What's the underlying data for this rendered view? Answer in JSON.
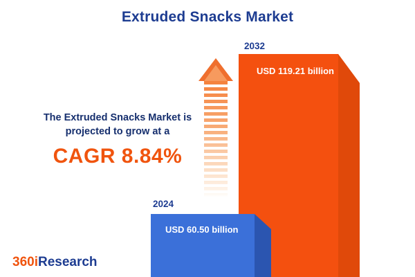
{
  "title": "Extruded Snacks Market",
  "chart_data": {
    "type": "bar",
    "categories": [
      "2024",
      "2032"
    ],
    "values": [
      60.5,
      119.21
    ],
    "value_labels": [
      "USD 60.50 billion",
      "USD 119.21 billion"
    ],
    "unit": "USD billion",
    "title": "Extruded Snacks Market",
    "xlabel": "",
    "ylabel": "",
    "legend": "none",
    "grid": false
  },
  "annotation": {
    "line1": "The Extruded Snacks Market is",
    "line2": "projected to grow at a",
    "cagr": "CAGR 8.84%"
  },
  "logo": {
    "part1": "360i",
    "part2": "Research"
  },
  "colors": {
    "navy": "#1d3c91",
    "annotation_navy": "#162f6e",
    "bar_2032_front": "#f4500f",
    "bar_2032_side": "#e0490a",
    "bar_2024_front": "#3b70d9",
    "bar_2024_side": "#2b55b0",
    "cagr_orange": "#f0540e",
    "arrow_orange": "#ef6f2e",
    "background": "#ffffff"
  }
}
